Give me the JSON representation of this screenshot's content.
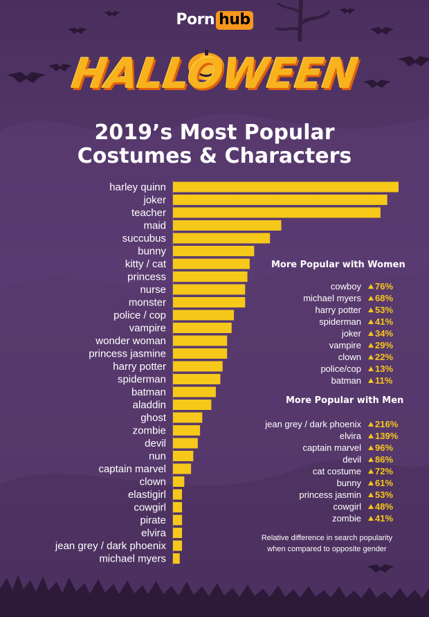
{
  "brand": {
    "part1": "Porn",
    "part2": "hub"
  },
  "header": {
    "halloween": "HALLOWEEN",
    "title_line1": "2019’s Most Popular",
    "title_line2": "Costumes & Characters"
  },
  "colors": {
    "bar": "#f5c81a",
    "background": "#4e3363",
    "arrow": "#f5c81a",
    "text": "#ffffff"
  },
  "chart_data": {
    "type": "bar",
    "orientation": "horizontal",
    "categories": [
      "harley quinn",
      "joker",
      "teacher",
      "maid",
      "succubus",
      "bunny",
      "kitty / cat",
      "princess",
      "nurse",
      "monster",
      "police / cop",
      "vampire",
      "wonder woman",
      "princess jasmine",
      "harry potter",
      "spiderman",
      "batman",
      "aladdin",
      "ghost",
      "zombie",
      "devil",
      "nun",
      "captain marvel",
      "clown",
      "elastigirl",
      "cowgirl",
      "pirate",
      "elvira",
      "jean grey / dark phoenix",
      "michael myers"
    ],
    "values": [
      100,
      95,
      92,
      48,
      43,
      36,
      34,
      33,
      32,
      32,
      27,
      26,
      24,
      24,
      22,
      21,
      19,
      17,
      13,
      12,
      11,
      9,
      8,
      5,
      4,
      4,
      4,
      4,
      4,
      3
    ],
    "xlim": [
      0,
      100
    ],
    "title": "2019’s Most Popular Costumes & Characters",
    "xlabel": "",
    "ylabel": ""
  },
  "women_panel": {
    "heading": "More Popular with Women",
    "items": [
      {
        "label": "cowboy",
        "value": "76%"
      },
      {
        "label": "michael myers",
        "value": "68%"
      },
      {
        "label": "harry potter",
        "value": "53%"
      },
      {
        "label": "spiderman",
        "value": "41%"
      },
      {
        "label": "joker",
        "value": "34%"
      },
      {
        "label": "vampire",
        "value": "29%"
      },
      {
        "label": "clown",
        "value": "22%"
      },
      {
        "label": "police/cop",
        "value": "13%"
      },
      {
        "label": "batman",
        "value": "11%"
      }
    ]
  },
  "men_panel": {
    "heading": "More Popular with Men",
    "items": [
      {
        "label": "jean grey / dark phoenix",
        "value": "216%"
      },
      {
        "label": "elvira",
        "value": "139%"
      },
      {
        "label": "captain marvel",
        "value": "96%"
      },
      {
        "label": "devil",
        "value": "86%"
      },
      {
        "label": "cat costume",
        "value": "72%"
      },
      {
        "label": "bunny",
        "value": "61%"
      },
      {
        "label": "princess jasmin",
        "value": "53%"
      },
      {
        "label": "cowgirl",
        "value": "48%"
      },
      {
        "label": "zombie",
        "value": "41%"
      }
    ]
  },
  "footnote": {
    "line1": "Relative difference in search popularity",
    "line2": "when compared to opposite gender"
  }
}
